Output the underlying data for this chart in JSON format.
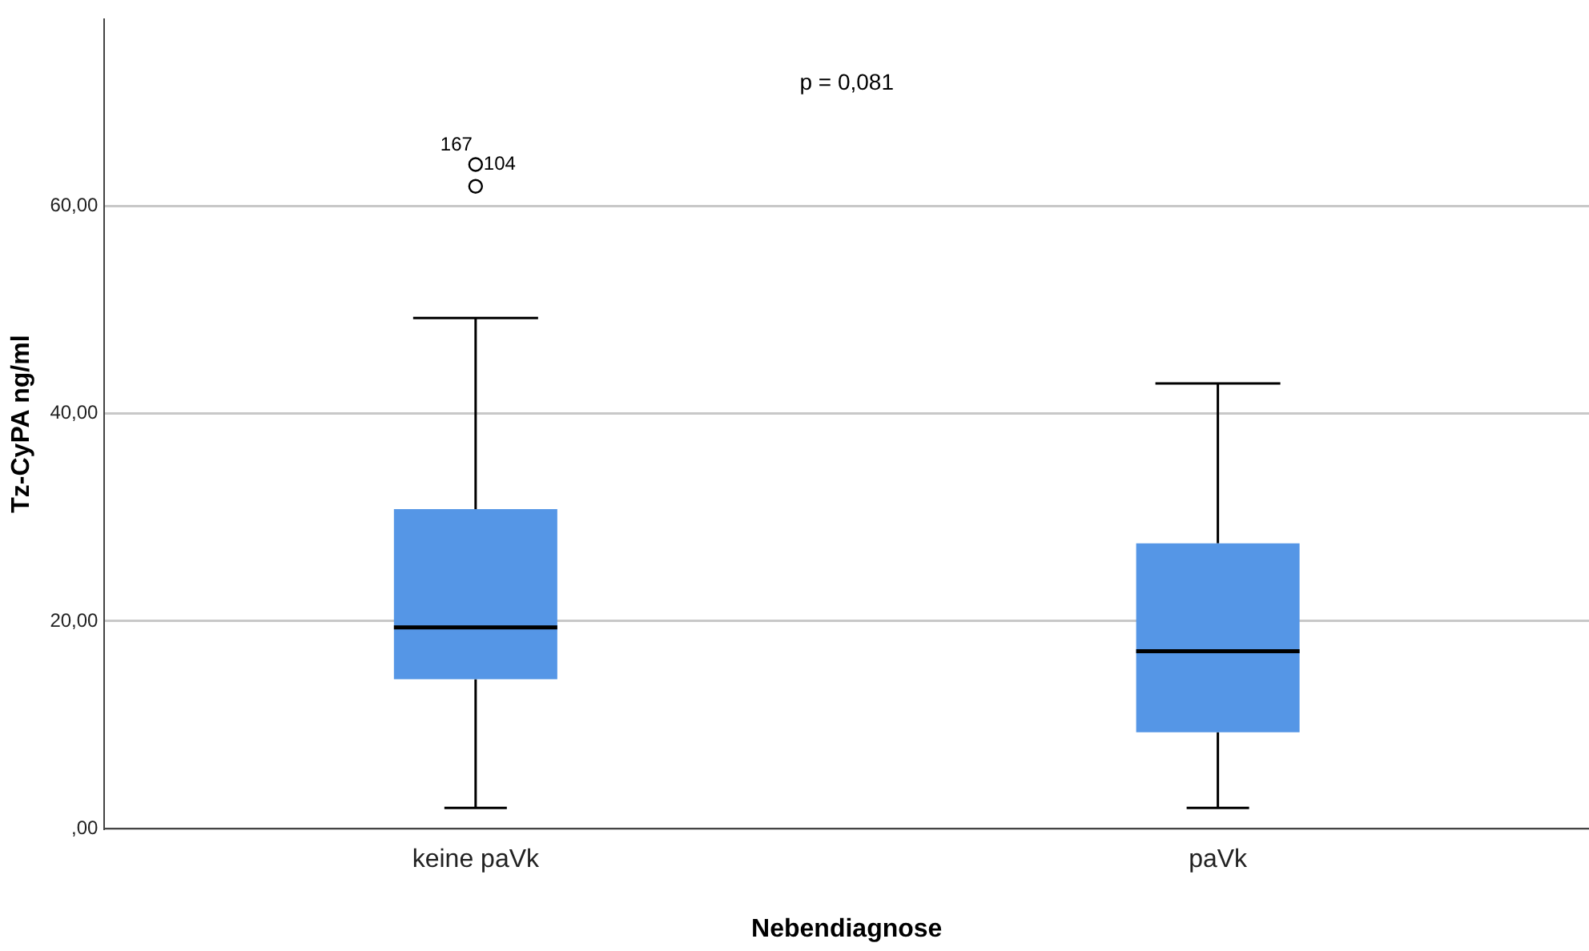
{
  "chart_data": {
    "type": "box",
    "xlabel": "Nebendiagnose",
    "ylabel": "Tz-CyPA ng/ml",
    "categories": [
      "keine paVk",
      "paVk"
    ],
    "boxes": [
      {
        "low": 2.0,
        "q1": 14.4,
        "median": 19.4,
        "q3": 30.8,
        "high": 49.2,
        "outliers": [
          61.9,
          64.0
        ]
      },
      {
        "low": 2.0,
        "q1": 9.3,
        "median": 17.1,
        "q3": 27.5,
        "high": 42.9
      }
    ],
    "color": "#5596e6",
    "ylim": [
      0,
      78
    ],
    "yticks": [
      {
        "value": 0,
        "label": ",00"
      },
      {
        "value": 20,
        "label": "20,00"
      },
      {
        "value": 40,
        "label": "40,00"
      },
      {
        "value": 60,
        "label": "60,00"
      }
    ],
    "grid": "y",
    "legend": false,
    "marker": "circle",
    "annotations": [
      "p = 0,081",
      "167",
      "104"
    ]
  }
}
